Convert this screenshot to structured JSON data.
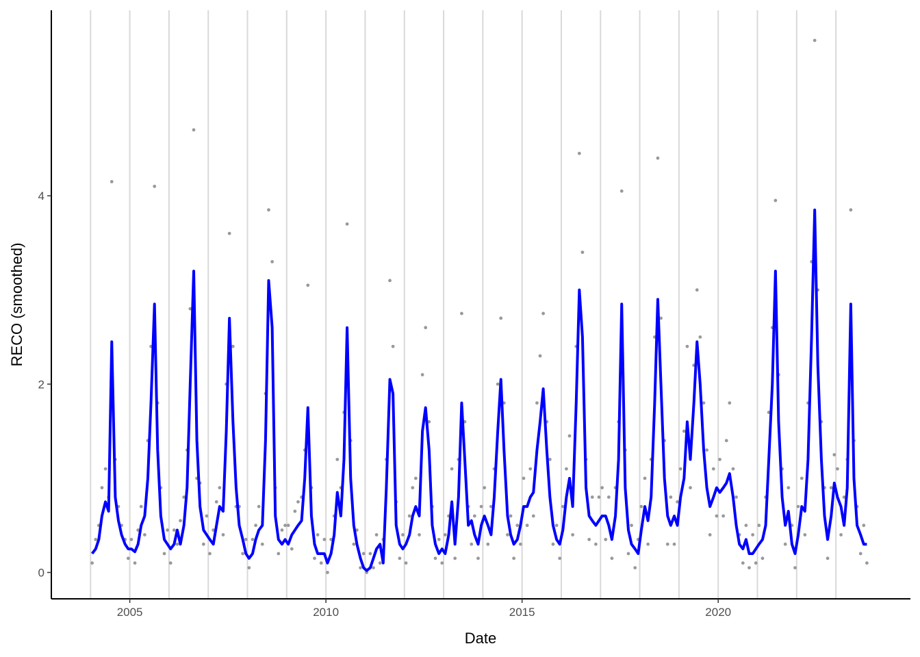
{
  "chart_data": {
    "type": "scatter-line",
    "x_label": "Date",
    "y_label": "RECO (smoothed)",
    "xlim": [
      2003.0,
      2024.9
    ],
    "xticks": [
      2005,
      2010,
      2015,
      2020
    ],
    "ylim": [
      -0.28,
      5.97
    ],
    "yticks": [
      0,
      2,
      4
    ],
    "vlines": [
      2004,
      2005,
      2006,
      2007,
      2008,
      2009,
      2010,
      2011,
      2012,
      2013,
      2014,
      2015,
      2016,
      2017,
      2018,
      2019,
      2020,
      2021,
      2022,
      2023
    ],
    "vline_color": "#d9d9d9",
    "x": [
      2004.04,
      2004.13,
      2004.21,
      2004.29,
      2004.38,
      2004.46,
      2004.54,
      2004.63,
      2004.71,
      2004.79,
      2004.88,
      2004.96,
      2005.04,
      2005.13,
      2005.21,
      2005.29,
      2005.38,
      2005.46,
      2005.54,
      2005.63,
      2005.71,
      2005.79,
      2005.88,
      2005.96,
      2006.04,
      2006.13,
      2006.21,
      2006.29,
      2006.38,
      2006.46,
      2006.54,
      2006.63,
      2006.71,
      2006.79,
      2006.88,
      2006.96,
      2007.04,
      2007.13,
      2007.21,
      2007.29,
      2007.38,
      2007.46,
      2007.54,
      2007.63,
      2007.71,
      2007.79,
      2007.88,
      2007.96,
      2008.04,
      2008.13,
      2008.21,
      2008.29,
      2008.38,
      2008.46,
      2008.54,
      2008.63,
      2008.71,
      2008.79,
      2008.88,
      2008.96,
      2009.04,
      2009.13,
      2009.21,
      2009.29,
      2009.38,
      2009.46,
      2009.54,
      2009.63,
      2009.71,
      2009.79,
      2009.88,
      2009.96,
      2010.04,
      2010.13,
      2010.21,
      2010.29,
      2010.38,
      2010.46,
      2010.54,
      2010.63,
      2010.71,
      2010.79,
      2010.88,
      2010.96,
      2011.04,
      2011.13,
      2011.21,
      2011.29,
      2011.38,
      2011.46,
      2011.54,
      2011.63,
      2011.71,
      2011.79,
      2011.88,
      2011.96,
      2012.04,
      2012.13,
      2012.21,
      2012.29,
      2012.38,
      2012.46,
      2012.54,
      2012.63,
      2012.71,
      2012.79,
      2012.88,
      2012.96,
      2013.04,
      2013.13,
      2013.21,
      2013.29,
      2013.38,
      2013.46,
      2013.54,
      2013.63,
      2013.71,
      2013.79,
      2013.88,
      2013.96,
      2014.04,
      2014.13,
      2014.21,
      2014.29,
      2014.38,
      2014.46,
      2014.54,
      2014.63,
      2014.71,
      2014.79,
      2014.88,
      2014.96,
      2015.04,
      2015.13,
      2015.21,
      2015.29,
      2015.38,
      2015.46,
      2015.54,
      2015.63,
      2015.71,
      2015.79,
      2015.88,
      2015.96,
      2016.04,
      2016.13,
      2016.21,
      2016.29,
      2016.38,
      2016.46,
      2016.54,
      2016.63,
      2016.71,
      2016.79,
      2016.88,
      2016.96,
      2017.04,
      2017.13,
      2017.21,
      2017.29,
      2017.38,
      2017.46,
      2017.54,
      2017.63,
      2017.71,
      2017.79,
      2017.88,
      2017.96,
      2018.04,
      2018.13,
      2018.21,
      2018.29,
      2018.38,
      2018.46,
      2018.54,
      2018.63,
      2018.71,
      2018.79,
      2018.88,
      2018.96,
      2019.04,
      2019.13,
      2019.21,
      2019.29,
      2019.38,
      2019.46,
      2019.54,
      2019.63,
      2019.71,
      2019.79,
      2019.88,
      2019.96,
      2020.04,
      2020.13,
      2020.21,
      2020.29,
      2020.38,
      2020.46,
      2020.54,
      2020.63,
      2020.71,
      2020.79,
      2020.88,
      2020.96,
      2021.04,
      2021.13,
      2021.21,
      2021.29,
      2021.38,
      2021.46,
      2021.54,
      2021.63,
      2021.71,
      2021.79,
      2021.88,
      2021.96,
      2022.04,
      2022.13,
      2022.21,
      2022.29,
      2022.38,
      2022.46,
      2022.54,
      2022.63,
      2022.71,
      2022.79,
      2022.88,
      2022.96,
      2023.04,
      2023.13,
      2023.21,
      2023.29,
      2023.38,
      2023.46,
      2023.54,
      2023.63,
      2023.71,
      2023.79
    ],
    "series": [
      {
        "style": "points",
        "color": "#999999",
        "values": [
          0.1,
          0.35,
          0.5,
          0.9,
          1.1,
          0.8,
          4.15,
          1.2,
          0.7,
          0.5,
          0.35,
          0.15,
          0.35,
          0.1,
          0.45,
          0.7,
          0.4,
          1.4,
          2.4,
          4.1,
          1.8,
          0.9,
          0.2,
          0.45,
          0.1,
          0.45,
          0.3,
          0.55,
          0.8,
          1.3,
          2.8,
          4.7,
          1.0,
          0.95,
          0.3,
          0.6,
          0.2,
          0.45,
          0.75,
          0.9,
          0.4,
          2.0,
          3.6,
          2.4,
          0.7,
          0.7,
          0.2,
          0.35,
          0.05,
          0.35,
          0.5,
          0.7,
          0.3,
          1.9,
          3.85,
          3.3,
          0.9,
          0.2,
          0.45,
          0.5,
          0.5,
          0.25,
          0.65,
          0.75,
          0.8,
          1.3,
          3.05,
          0.9,
          0.15,
          0.4,
          0.1,
          0.35,
          0.0,
          0.35,
          0.6,
          1.2,
          0.9,
          1.7,
          3.7,
          1.4,
          0.3,
          0.45,
          0.05,
          0.2,
          0.0,
          0.2,
          0.05,
          0.4,
          0.1,
          0.35,
          1.2,
          3.1,
          2.4,
          0.75,
          0.15,
          0.4,
          0.1,
          0.6,
          0.9,
          1.0,
          0.4,
          2.1,
          2.6,
          1.6,
          0.7,
          0.15,
          0.35,
          0.1,
          0.4,
          0.6,
          1.1,
          0.15,
          1.2,
          2.75,
          1.6,
          0.7,
          0.3,
          0.6,
          0.15,
          0.7,
          0.9,
          0.3,
          0.7,
          1.1,
          2.0,
          2.7,
          1.8,
          0.4,
          0.6,
          0.15,
          0.5,
          0.3,
          1.0,
          0.5,
          1.1,
          0.6,
          1.8,
          2.3,
          2.75,
          1.6,
          1.2,
          0.3,
          0.5,
          0.15,
          0.7,
          1.1,
          1.45,
          0.4,
          2.4,
          4.45,
          3.4,
          1.2,
          0.35,
          0.8,
          0.3,
          0.8,
          0.9,
          0.35,
          0.8,
          0.15,
          0.9,
          1.6,
          4.05,
          1.3,
          0.2,
          0.5,
          0.05,
          0.35,
          0.7,
          1.0,
          0.3,
          1.2,
          2.5,
          4.4,
          2.7,
          1.4,
          0.3,
          0.8,
          0.3,
          0.75,
          1.1,
          1.5,
          2.4,
          0.9,
          2.2,
          3.0,
          2.5,
          1.8,
          1.3,
          0.4,
          1.1,
          0.6,
          1.2,
          0.6,
          1.4,
          1.8,
          1.1,
          0.8,
          0.4,
          0.1,
          0.5,
          0.05,
          0.4,
          0.1,
          0.5,
          0.15,
          0.8,
          1.7,
          2.6,
          3.95,
          2.1,
          1.1,
          0.3,
          0.9,
          0.5,
          0.05,
          0.7,
          1.0,
          0.4,
          1.8,
          3.3,
          5.65,
          3.0,
          1.6,
          0.9,
          0.15,
          0.9,
          1.25,
          1.1,
          0.4,
          0.8,
          1.2,
          3.85,
          1.4,
          0.7,
          0.2,
          0.5,
          0.1
        ]
      },
      {
        "style": "line",
        "color": "#0000ff",
        "values": [
          0.2,
          0.25,
          0.35,
          0.6,
          0.75,
          0.65,
          2.45,
          0.8,
          0.55,
          0.4,
          0.3,
          0.25,
          0.25,
          0.22,
          0.3,
          0.5,
          0.6,
          1.0,
          1.8,
          2.85,
          1.3,
          0.6,
          0.35,
          0.3,
          0.25,
          0.3,
          0.45,
          0.3,
          0.5,
          0.9,
          2.0,
          3.2,
          1.4,
          0.7,
          0.45,
          0.4,
          0.35,
          0.3,
          0.5,
          0.7,
          0.65,
          1.5,
          2.7,
          1.6,
          0.9,
          0.5,
          0.35,
          0.2,
          0.15,
          0.2,
          0.35,
          0.45,
          0.5,
          1.4,
          3.1,
          2.6,
          0.6,
          0.35,
          0.3,
          0.35,
          0.3,
          0.4,
          0.45,
          0.5,
          0.55,
          1.0,
          1.75,
          0.6,
          0.3,
          0.2,
          0.2,
          0.2,
          0.1,
          0.2,
          0.4,
          0.85,
          0.6,
          1.2,
          2.6,
          1.0,
          0.5,
          0.3,
          0.15,
          0.05,
          0.02,
          0.05,
          0.15,
          0.25,
          0.3,
          0.1,
          0.9,
          2.05,
          1.9,
          0.5,
          0.3,
          0.25,
          0.3,
          0.4,
          0.6,
          0.7,
          0.6,
          1.5,
          1.75,
          1.3,
          0.5,
          0.3,
          0.2,
          0.25,
          0.2,
          0.4,
          0.75,
          0.3,
          0.8,
          1.8,
          1.2,
          0.5,
          0.55,
          0.4,
          0.3,
          0.5,
          0.6,
          0.5,
          0.4,
          0.8,
          1.5,
          2.05,
          1.3,
          0.6,
          0.4,
          0.3,
          0.35,
          0.5,
          0.7,
          0.7,
          0.8,
          0.85,
          1.3,
          1.6,
          1.95,
          1.3,
          0.8,
          0.5,
          0.35,
          0.3,
          0.45,
          0.8,
          1.0,
          0.7,
          1.8,
          3.0,
          2.5,
          0.9,
          0.6,
          0.55,
          0.5,
          0.55,
          0.6,
          0.6,
          0.5,
          0.35,
          0.6,
          1.2,
          2.85,
          0.9,
          0.45,
          0.3,
          0.25,
          0.2,
          0.45,
          0.7,
          0.55,
          0.8,
          1.8,
          2.9,
          2.0,
          1.0,
          0.6,
          0.5,
          0.6,
          0.5,
          0.8,
          1.0,
          1.6,
          1.2,
          1.8,
          2.45,
          2.0,
          1.3,
          0.9,
          0.7,
          0.8,
          0.9,
          0.85,
          0.9,
          0.95,
          1.05,
          0.8,
          0.5,
          0.3,
          0.25,
          0.35,
          0.2,
          0.2,
          0.25,
          0.3,
          0.35,
          0.5,
          1.2,
          2.0,
          3.2,
          1.6,
          0.8,
          0.5,
          0.65,
          0.3,
          0.2,
          0.4,
          0.7,
          0.65,
          1.2,
          2.5,
          3.85,
          2.2,
          1.2,
          0.6,
          0.35,
          0.6,
          0.95,
          0.8,
          0.7,
          0.5,
          0.9,
          2.85,
          1.0,
          0.5,
          0.4,
          0.3,
          0.3
        ]
      }
    ]
  }
}
